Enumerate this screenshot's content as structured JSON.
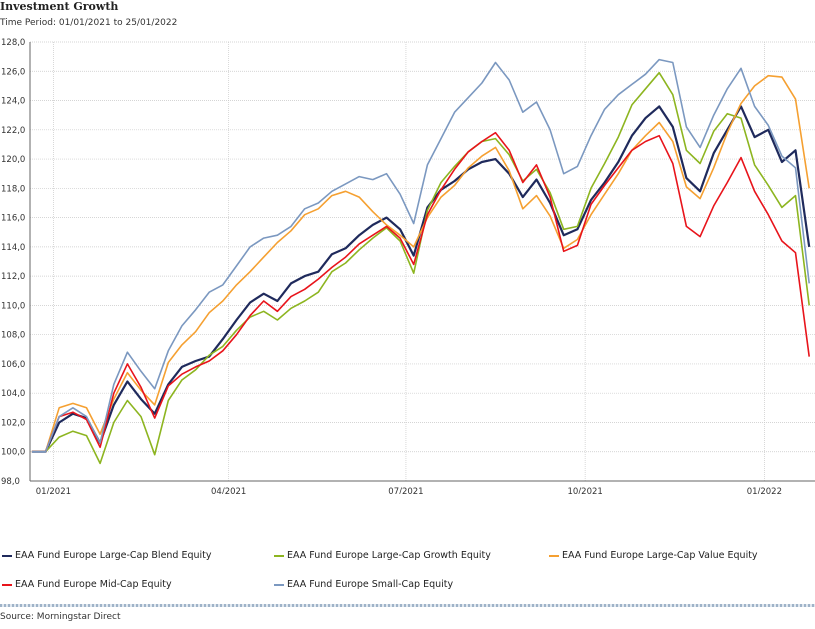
{
  "title": "Investment Growth",
  "subtitle": "Time Period: 01/01/2021 to 25/01/2022",
  "source": "Source: Morningstar Direct",
  "chart_data": {
    "type": "line",
    "title": "Investment Growth",
    "subtitle": "Time Period: 01/01/2021 to 25/01/2022",
    "ylim": [
      98.0,
      128.0
    ],
    "y_ticks": [
      "98,0",
      "100,0",
      "102,0",
      "104,0",
      "106,0",
      "108,0",
      "110,0",
      "112,0",
      "114,0",
      "116,0",
      "118,0",
      "120,0",
      "122,0",
      "124,0",
      "126,0",
      "128,0"
    ],
    "x_range": [
      "2020-12-20",
      "2022-01-27"
    ],
    "x_ticks": [
      {
        "date": "2021-01-01",
        "label": "01/2021"
      },
      {
        "date": "2021-04-01",
        "label": "04/2021"
      },
      {
        "date": "2021-07-01",
        "label": "07/2021"
      },
      {
        "date": "2021-10-01",
        "label": "10/2021"
      },
      {
        "date": "2022-01-01",
        "label": "01/2022"
      }
    ],
    "grid": true,
    "legend_position": "bottom",
    "x": [
      "2020-12-21",
      "2020-12-28",
      "2021-01-04",
      "2021-01-11",
      "2021-01-18",
      "2021-01-25",
      "2021-02-01",
      "2021-02-08",
      "2021-02-15",
      "2021-02-22",
      "2021-03-01",
      "2021-03-08",
      "2021-03-15",
      "2021-03-22",
      "2021-03-29",
      "2021-04-05",
      "2021-04-12",
      "2021-04-19",
      "2021-04-26",
      "2021-05-03",
      "2021-05-10",
      "2021-05-17",
      "2021-05-24",
      "2021-05-31",
      "2021-06-07",
      "2021-06-14",
      "2021-06-21",
      "2021-06-28",
      "2021-07-05",
      "2021-07-12",
      "2021-07-19",
      "2021-07-26",
      "2021-08-02",
      "2021-08-09",
      "2021-08-16",
      "2021-08-23",
      "2021-08-30",
      "2021-09-06",
      "2021-09-13",
      "2021-09-20",
      "2021-09-27",
      "2021-10-04",
      "2021-10-11",
      "2021-10-18",
      "2021-10-25",
      "2021-11-01",
      "2021-11-08",
      "2021-11-15",
      "2021-11-22",
      "2021-11-29",
      "2021-12-06",
      "2021-12-13",
      "2021-12-20",
      "2021-12-27",
      "2022-01-03",
      "2022-01-10",
      "2022-01-17",
      "2022-01-24"
    ],
    "series": [
      {
        "name": "EAA Fund Europe Large-Cap Blend Equity",
        "color": "#1f2a5c",
        "values": [
          100.0,
          100.0,
          102.0,
          102.6,
          102.3,
          100.6,
          103.2,
          104.8,
          103.6,
          102.6,
          104.6,
          105.8,
          106.2,
          106.5,
          107.7,
          109.0,
          110.2,
          110.8,
          110.3,
          111.5,
          112.0,
          112.3,
          113.5,
          113.9,
          114.8,
          115.5,
          116.0,
          115.2,
          113.4,
          116.7,
          117.9,
          118.5,
          119.3,
          119.8,
          120.0,
          119.0,
          117.4,
          118.6,
          117.0,
          114.8,
          115.2,
          117.2,
          118.4,
          119.8,
          121.6,
          122.8,
          123.6,
          122.2,
          118.7,
          117.8,
          120.4,
          122.0,
          123.6,
          121.5,
          122.0,
          119.8,
          120.6,
          114.0
        ]
      },
      {
        "name": "EAA Fund Europe Large-Cap Growth Equity",
        "color": "#8db520",
        "values": [
          100.0,
          100.0,
          101.0,
          101.4,
          101.1,
          99.2,
          102.0,
          103.5,
          102.4,
          99.8,
          103.5,
          104.9,
          105.6,
          106.6,
          107.2,
          108.3,
          109.2,
          109.6,
          109.0,
          109.8,
          110.3,
          110.9,
          112.3,
          112.9,
          113.8,
          114.6,
          115.3,
          114.4,
          112.2,
          116.5,
          118.4,
          119.5,
          120.5,
          121.2,
          121.4,
          120.3,
          118.5,
          119.3,
          117.7,
          115.2,
          115.4,
          118.0,
          119.7,
          121.5,
          123.7,
          124.8,
          125.9,
          124.4,
          120.6,
          119.7,
          121.9,
          123.1,
          122.8,
          119.6,
          118.2,
          116.7,
          117.5,
          110.0
        ]
      },
      {
        "name": "EAA Fund Europe Large-Cap Value Equity",
        "color": "#f5a031",
        "values": [
          100.0,
          100.0,
          103.0,
          103.3,
          103.0,
          101.2,
          103.6,
          105.4,
          104.2,
          103.2,
          106.1,
          107.3,
          108.2,
          109.5,
          110.3,
          111.4,
          112.3,
          113.3,
          114.3,
          115.1,
          116.2,
          116.6,
          117.5,
          117.8,
          117.4,
          116.4,
          115.5,
          114.8,
          114.0,
          116.0,
          117.4,
          118.2,
          119.4,
          120.2,
          120.8,
          119.2,
          116.6,
          117.5,
          116.1,
          113.9,
          114.5,
          116.2,
          117.6,
          119.0,
          120.6,
          121.6,
          122.5,
          121.2,
          118.1,
          117.3,
          119.4,
          121.8,
          123.8,
          125.0,
          125.7,
          125.6,
          124.1,
          118.0
        ]
      },
      {
        "name": "EAA Fund Europe Mid-Cap Equity",
        "color": "#e8141b",
        "values": [
          100.0,
          100.0,
          102.4,
          102.7,
          102.2,
          100.3,
          104.0,
          106.0,
          104.4,
          102.3,
          104.5,
          105.3,
          105.8,
          106.2,
          106.9,
          108.0,
          109.3,
          110.3,
          109.6,
          110.6,
          111.1,
          111.8,
          112.6,
          113.3,
          114.2,
          114.8,
          115.4,
          114.6,
          112.8,
          116.2,
          117.9,
          119.3,
          120.5,
          121.2,
          121.8,
          120.6,
          118.4,
          119.6,
          117.4,
          113.7,
          114.1,
          116.9,
          118.2,
          119.4,
          120.6,
          121.2,
          121.6,
          119.7,
          115.4,
          114.7,
          116.8,
          118.4,
          120.1,
          117.8,
          116.2,
          114.4,
          113.6,
          106.5
        ]
      },
      {
        "name": "EAA Fund Europe Small-Cap Equity",
        "color": "#7b98c0",
        "values": [
          100.0,
          100.0,
          102.4,
          103.0,
          102.4,
          100.6,
          104.6,
          106.8,
          105.5,
          104.3,
          106.9,
          108.6,
          109.7,
          110.9,
          111.4,
          112.7,
          114.0,
          114.6,
          114.8,
          115.4,
          116.6,
          117.0,
          117.8,
          118.3,
          118.8,
          118.6,
          119.0,
          117.6,
          115.6,
          119.6,
          121.4,
          123.2,
          124.2,
          125.2,
          126.6,
          125.4,
          123.2,
          123.9,
          122.0,
          119.0,
          119.5,
          121.6,
          123.4,
          124.4,
          125.1,
          125.8,
          126.8,
          126.6,
          122.2,
          120.8,
          123.0,
          124.8,
          126.2,
          123.6,
          122.3,
          120.2,
          119.4,
          111.5
        ]
      }
    ]
  },
  "legend": [
    {
      "label": "EAA Fund Europe Large-Cap Blend Equity",
      "color": "#1f2a5c"
    },
    {
      "label": "EAA Fund Europe Large-Cap Growth Equity",
      "color": "#8db520"
    },
    {
      "label": "EAA Fund Europe Large-Cap Value Equity",
      "color": "#f5a031"
    },
    {
      "label": "EAA Fund Europe Mid-Cap Equity",
      "color": "#e8141b"
    },
    {
      "label": "EAA Fund Europe Small-Cap Equity",
      "color": "#7b98c0"
    }
  ]
}
